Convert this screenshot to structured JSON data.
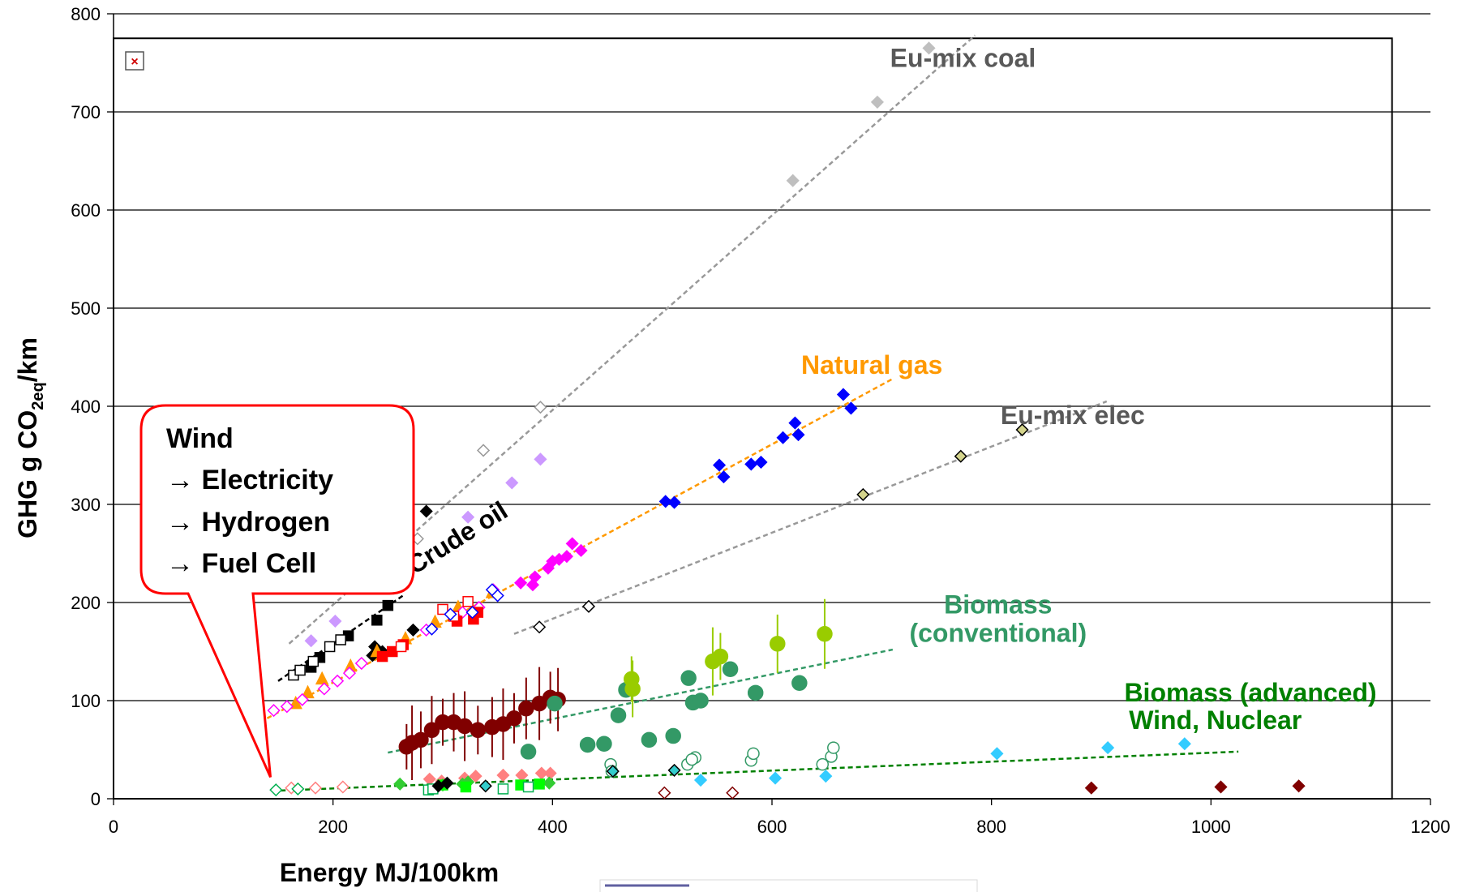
{
  "chart_data": {
    "type": "scatter",
    "title": "",
    "xlabel": "Energy MJ/100km",
    "ylabel_parts": [
      "GHG g CO",
      "2eq",
      "/km"
    ],
    "xlim": [
      0,
      1200
    ],
    "ylim": [
      0,
      800
    ],
    "xticks": [
      0,
      200,
      400,
      600,
      800,
      1000,
      1200
    ],
    "yticks": [
      0,
      100,
      200,
      300,
      400,
      500,
      600,
      700,
      800
    ],
    "grid": "horizontal",
    "annotations": [
      {
        "id": "coal",
        "text": "Eu-mix coal",
        "x": 774,
        "y": 746,
        "color": "#595959"
      },
      {
        "id": "natgas",
        "text": "Natural gas",
        "x": 691,
        "y": 433,
        "color": "#ff9900"
      },
      {
        "id": "elec",
        "text": "Eu-mix elec",
        "x": 874,
        "y": 382,
        "color": "#595959"
      },
      {
        "id": "bio1",
        "text": "Biomass",
        "x": 806,
        "y": 189,
        "color": "#339966"
      },
      {
        "id": "bio2",
        "text": "(conventional)",
        "x": 806,
        "y": 160,
        "color": "#339966"
      },
      {
        "id": "adv1",
        "text": "Biomass (advanced)",
        "x": 1036,
        "y": 99,
        "color": "#008000"
      },
      {
        "id": "adv2",
        "text": "Wind, Nuclear",
        "x": 1004,
        "y": 71,
        "color": "#008000"
      }
    ],
    "crude_oil_label": {
      "text": "Crude oil",
      "x": 274,
      "y": 228,
      "color": "#000000"
    },
    "callout": {
      "lines": [
        "Wind",
        "→ Electricity",
        "→ Hydrogen",
        "→ Fuel Cell"
      ],
      "x": 143,
      "y": 22
    },
    "trendlines": [
      {
        "name": "coal",
        "color": "#999999",
        "x": [
          160,
          785
        ],
        "y": [
          158,
          778
        ]
      },
      {
        "name": "crude",
        "color": "#000000",
        "x": [
          150,
          265
        ],
        "y": [
          120,
          208
        ]
      },
      {
        "name": "natgas",
        "color": "#ff9900",
        "x": [
          140,
          710
        ],
        "y": [
          82,
          428
        ]
      },
      {
        "name": "elec",
        "color": "#999999",
        "x": [
          365,
          905
        ],
        "y": [
          168,
          405
        ]
      },
      {
        "name": "bio_conv",
        "color": "#339966",
        "x": [
          250,
          710
        ],
        "y": [
          47,
          152
        ]
      },
      {
        "name": "bio_adv",
        "color": "#008000",
        "x": [
          145,
          1025
        ],
        "y": [
          8,
          48
        ]
      }
    ],
    "series": [
      {
        "marker": "diamond",
        "fill": "#bfbfbf",
        "stroke": "#bfbfbf",
        "points": [
          [
            743,
            765
          ],
          [
            696,
            710
          ],
          [
            619,
            630
          ]
        ]
      },
      {
        "marker": "diamond",
        "fill": "#ffffff",
        "stroke": "#999999",
        "points": [
          [
            389,
            399
          ],
          [
            337,
            355
          ],
          [
            277,
            265
          ]
        ]
      },
      {
        "marker": "diamond",
        "fill": "#cc99ff",
        "stroke": "#cc99ff",
        "points": [
          [
            389,
            346
          ],
          [
            363,
            322
          ],
          [
            323,
            287
          ],
          [
            202,
            181
          ],
          [
            180,
            161
          ]
        ]
      },
      {
        "marker": "diamond",
        "fill": "#000000",
        "stroke": "#000000",
        "points": [
          [
            285,
            293
          ],
          [
            273,
            172
          ],
          [
            238,
            155
          ],
          [
            236,
            146
          ],
          [
            245,
            150
          ]
        ]
      },
      {
        "marker": "square",
        "fill": "#000000",
        "stroke": "#000000",
        "points": [
          [
            250,
            197
          ],
          [
            240,
            182
          ],
          [
            214,
            166
          ],
          [
            188,
            144
          ],
          [
            180,
            134
          ]
        ]
      },
      {
        "marker": "square",
        "fill": "#ffffff",
        "stroke": "#000000",
        "points": [
          [
            164,
            126
          ],
          [
            170,
            131
          ],
          [
            197,
            155
          ],
          [
            207,
            162
          ],
          [
            182,
            140
          ]
        ]
      },
      {
        "marker": "triangle",
        "fill": "#ff9900",
        "stroke": "#ff9900",
        "points": [
          [
            166,
            97
          ],
          [
            177,
            108
          ],
          [
            190,
            122
          ],
          [
            216,
            135
          ],
          [
            240,
            150
          ],
          [
            266,
            163
          ],
          [
            293,
            180
          ],
          [
            314,
            195
          ],
          [
            345,
            210
          ]
        ]
      },
      {
        "marker": "diamond",
        "fill": "#ff00ff",
        "stroke": "#ff00ff",
        "points": [
          [
            384,
            226
          ],
          [
            396,
            235
          ],
          [
            406,
            244
          ],
          [
            426,
            253
          ],
          [
            418,
            260
          ],
          [
            346,
            213
          ],
          [
            371,
            220
          ],
          [
            382,
            218
          ],
          [
            400,
            242
          ],
          [
            413,
            247
          ]
        ]
      },
      {
        "marker": "diamond",
        "fill": "#ffffff",
        "stroke": "#ff00ff",
        "points": [
          [
            146,
            90
          ],
          [
            158,
            94
          ],
          [
            172,
            101
          ],
          [
            192,
            112
          ],
          [
            204,
            120
          ],
          [
            215,
            128
          ],
          [
            226,
            138
          ],
          [
            285,
            172
          ],
          [
            318,
            190
          ],
          [
            333,
            195
          ]
        ]
      },
      {
        "marker": "square",
        "fill": "#ff0000",
        "stroke": "#ff0000",
        "points": [
          [
            245,
            145
          ],
          [
            254,
            150
          ],
          [
            313,
            181
          ],
          [
            328,
            183
          ],
          [
            332,
            190
          ],
          [
            264,
            157
          ]
        ]
      },
      {
        "marker": "square",
        "fill": "#ffffff",
        "stroke": "#ff0000",
        "points": [
          [
            262,
            155
          ],
          [
            323,
            201
          ],
          [
            300,
            193
          ],
          [
            310,
            186
          ]
        ]
      },
      {
        "marker": "diamond",
        "fill": "#ffffff",
        "stroke": "#0000ff",
        "points": [
          [
            345,
            213
          ],
          [
            350,
            207
          ],
          [
            327,
            190
          ],
          [
            307,
            188
          ],
          [
            290,
            173
          ]
        ]
      },
      {
        "marker": "diamond",
        "fill": "#0000ff",
        "stroke": "#0000ff",
        "points": [
          [
            665,
            412
          ],
          [
            672,
            398
          ],
          [
            621,
            383
          ],
          [
            624,
            371
          ],
          [
            610,
            368
          ],
          [
            590,
            343
          ],
          [
            581,
            341
          ],
          [
            552,
            340
          ],
          [
            556,
            328
          ],
          [
            503,
            303
          ],
          [
            511,
            302
          ]
        ]
      },
      {
        "marker": "diamond",
        "fill": "#d4d48c",
        "stroke": "#000000",
        "points": [
          [
            828,
            376
          ],
          [
            772,
            349
          ],
          [
            683,
            310
          ]
        ]
      },
      {
        "marker": "diamond",
        "fill": "#ffffff",
        "stroke": "#000000",
        "points": [
          [
            433,
            196
          ],
          [
            388,
            175
          ]
        ]
      },
      {
        "marker": "circle",
        "fill": "#800000",
        "stroke": "#800000",
        "errorbars": true,
        "points": [
          [
            267,
            53
          ],
          [
            280,
            60
          ],
          [
            290,
            70
          ],
          [
            300,
            78
          ],
          [
            310,
            78
          ],
          [
            320,
            74
          ],
          [
            332,
            70
          ],
          [
            345,
            73
          ],
          [
            355,
            76
          ],
          [
            365,
            82
          ],
          [
            376,
            92
          ],
          [
            388,
            97
          ],
          [
            398,
            103
          ],
          [
            405,
            101
          ],
          [
            272,
            57
          ]
        ]
      },
      {
        "marker": "circle",
        "fill": "#339966",
        "stroke": "#339966",
        "points": [
          [
            402,
            97
          ],
          [
            378,
            48
          ],
          [
            432,
            55
          ],
          [
            460,
            85
          ],
          [
            488,
            60
          ],
          [
            510,
            64
          ],
          [
            524,
            123
          ],
          [
            528,
            98
          ],
          [
            535,
            100
          ],
          [
            562,
            132
          ],
          [
            585,
            108
          ],
          [
            625,
            118
          ],
          [
            447,
            56
          ],
          [
            467,
            111
          ]
        ]
      },
      {
        "marker": "circle",
        "fill": "#99cc00",
        "stroke": "#99cc00",
        "errorbars": true,
        "points": [
          [
            472,
            122
          ],
          [
            473,
            112
          ],
          [
            546,
            140
          ],
          [
            553,
            145
          ],
          [
            605,
            158
          ],
          [
            648,
            168
          ]
        ]
      },
      {
        "marker": "circle",
        "fill": "#ffffff",
        "stroke": "#339966",
        "points": [
          [
            453,
            35
          ],
          [
            454,
            28
          ],
          [
            523,
            35
          ],
          [
            530,
            42
          ],
          [
            581,
            39
          ],
          [
            583,
            46
          ],
          [
            654,
            43
          ],
          [
            656,
            52
          ],
          [
            527,
            40
          ],
          [
            646,
            35
          ]
        ]
      },
      {
        "marker": "diamond",
        "fill": "#ffffff",
        "stroke": "#ff8080",
        "points": [
          [
            162,
            11
          ],
          [
            184,
            11
          ],
          [
            209,
            12
          ]
        ]
      },
      {
        "marker": "diamond",
        "fill": "#ff8080",
        "stroke": "#ff8080",
        "points": [
          [
            288,
            20
          ],
          [
            320,
            21
          ],
          [
            330,
            23
          ],
          [
            355,
            24
          ],
          [
            372,
            24
          ],
          [
            390,
            26
          ],
          [
            398,
            26
          ],
          [
            299,
            18
          ]
        ]
      },
      {
        "marker": "diamond",
        "fill": "#ffffff",
        "stroke": "#00b050",
        "points": [
          [
            148,
            9
          ],
          [
            168,
            10
          ]
        ]
      },
      {
        "marker": "diamond",
        "fill": "#33cc33",
        "stroke": "#33cc33",
        "points": [
          [
            261,
            15
          ],
          [
            300,
            14
          ],
          [
            318,
            15
          ],
          [
            323,
            17
          ],
          [
            397,
            16
          ]
        ]
      },
      {
        "marker": "square",
        "fill": "#00ff00",
        "stroke": "#00ff00",
        "points": [
          [
            321,
            12
          ],
          [
            371,
            14
          ],
          [
            388,
            15
          ],
          [
            300,
            14
          ]
        ]
      },
      {
        "marker": "square",
        "fill": "#ffffff",
        "stroke": "#00b050",
        "points": [
          [
            287,
            9
          ],
          [
            355,
            10
          ],
          [
            378,
            12
          ],
          [
            291,
            10
          ]
        ]
      },
      {
        "marker": "diamond",
        "fill": "#000000",
        "stroke": "#000000",
        "points": [
          [
            304,
            16
          ],
          [
            296,
            13
          ]
        ]
      },
      {
        "marker": "diamond",
        "fill": "#33cccc",
        "stroke": "#000000",
        "points": [
          [
            339,
            13
          ],
          [
            455,
            28
          ],
          [
            511,
            29
          ]
        ]
      },
      {
        "marker": "diamond",
        "fill": "#33ccff",
        "stroke": "#33ccff",
        "points": [
          [
            535,
            19
          ],
          [
            603,
            21
          ],
          [
            649,
            23
          ],
          [
            805,
            46
          ],
          [
            906,
            52
          ],
          [
            976,
            56
          ]
        ]
      },
      {
        "marker": "diamond",
        "fill": "#800000",
        "stroke": "#800000",
        "points": [
          [
            891,
            11
          ],
          [
            1009,
            12
          ],
          [
            1080,
            13
          ]
        ]
      },
      {
        "marker": "diamond",
        "fill": "#ffffff",
        "stroke": "#800000",
        "points": [
          [
            502,
            6
          ],
          [
            564,
            6
          ]
        ]
      }
    ]
  }
}
